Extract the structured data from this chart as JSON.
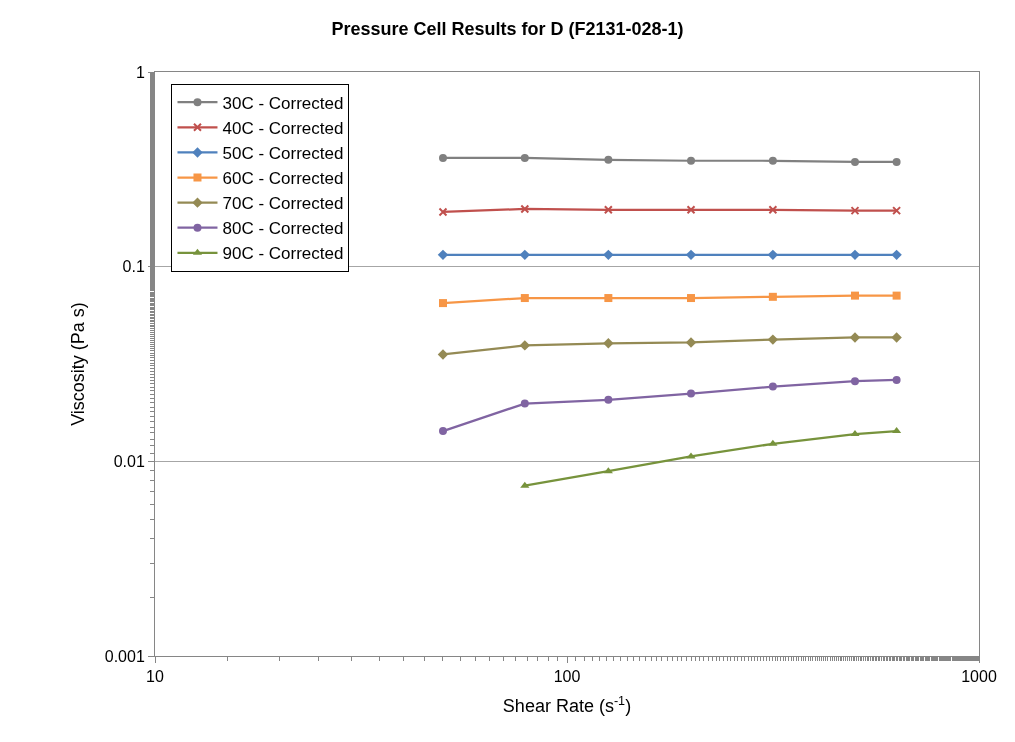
{
  "chart_data": {
    "type": "line",
    "title": "Pressure Cell Results for D (F2131-028-1)",
    "xlabel": "Shear Rate (s$^{-1}$)",
    "ylabel": "Viscosity (Pa s)",
    "x": [
      50,
      79,
      126,
      200,
      316,
      500,
      631
    ],
    "series": [
      {
        "name": "30C - Corrected",
        "color": "#808080",
        "marker": "circle",
        "values": [
          0.362,
          0.362,
          0.354,
          0.35,
          0.35,
          0.345,
          0.345
        ]
      },
      {
        "name": "40C - Corrected",
        "color": "#c0504d",
        "marker": "cross",
        "values": [
          0.191,
          0.198,
          0.196,
          0.196,
          0.196,
          0.194,
          0.194
        ]
      },
      {
        "name": "50C - Corrected",
        "color": "#4f81bd",
        "marker": "diamond",
        "values": [
          0.115,
          0.115,
          0.115,
          0.115,
          0.115,
          0.115,
          0.115
        ]
      },
      {
        "name": "60C - Corrected",
        "color": "#f79646",
        "marker": "square",
        "values": [
          0.065,
          0.069,
          0.069,
          0.069,
          0.07,
          0.071,
          0.071
        ]
      },
      {
        "name": "70C - Corrected",
        "color": "#948a54",
        "marker": "diamond",
        "values": [
          0.0354,
          0.0394,
          0.0404,
          0.0408,
          0.0422,
          0.0433,
          0.0433
        ]
      },
      {
        "name": "80C - Corrected",
        "color": "#8064a2",
        "marker": "circle",
        "values": [
          0.0143,
          0.0198,
          0.0207,
          0.0223,
          0.0242,
          0.0258,
          0.0262
        ]
      },
      {
        "name": "90C - Corrected",
        "color": "#77933c",
        "marker": "triangle",
        "values": [
          null,
          0.0075,
          0.0089,
          0.0106,
          0.0123,
          0.0138,
          0.0143
        ]
      }
    ],
    "log": "xy",
    "xlim": [
      10,
      1000
    ],
    "xticks": [
      10,
      100,
      1000
    ],
    "ylim": [
      0.001,
      1
    ],
    "yticks": [
      0.001,
      0.01,
      0.1,
      1
    ],
    "grid": "y",
    "legend": "top left"
  }
}
